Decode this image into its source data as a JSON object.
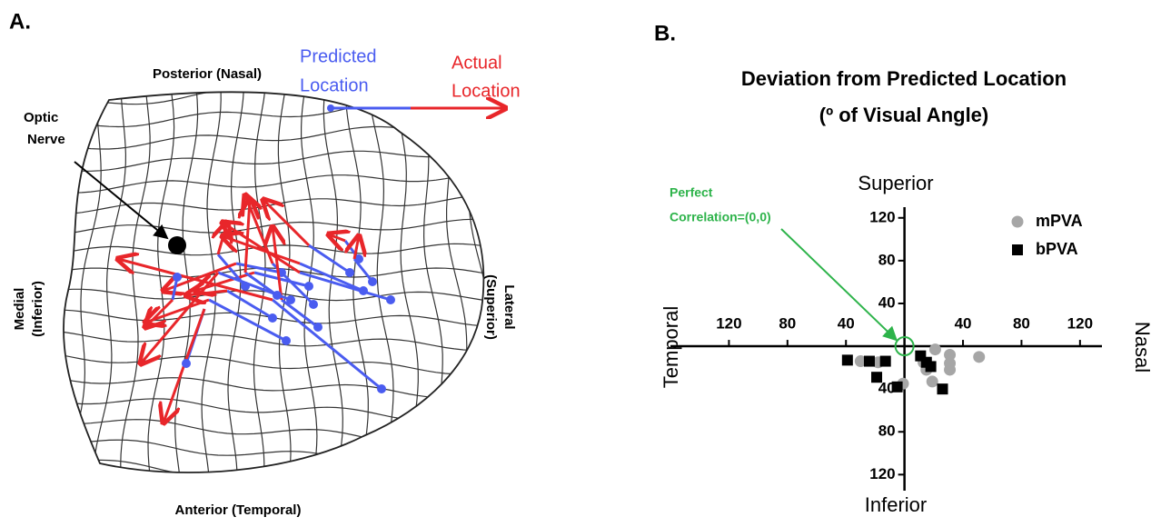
{
  "panel_a": {
    "label": "A.",
    "top": "Posterior (Nasal)",
    "bottom": "Anterior (Temporal)",
    "left": [
      "Medial",
      "(Inferior)"
    ],
    "right": [
      "Lateral",
      "(Superior)"
    ],
    "optic_nerve": [
      "Optic",
      "Nerve"
    ],
    "predicted": [
      "Predicted",
      "Location"
    ],
    "actual": [
      "Actual",
      "Location"
    ]
  },
  "chart_data": {
    "type": "scatter",
    "panel_label": "B.",
    "title": [
      "Deviation from Predicted Location",
      "(º of Visual Angle)"
    ],
    "y_top_label": "Superior",
    "y_bottom_label": "Inferior",
    "x_left_label": "Temporal",
    "x_right_label": "Nasal",
    "annotation": [
      "Perfect",
      "Correlation=(0,0)"
    ],
    "xlim": [
      -160,
      135
    ],
    "ylim": [
      -135,
      130
    ],
    "xticks": [
      {
        "value": -120,
        "label": "120"
      },
      {
        "value": -80,
        "label": "80"
      },
      {
        "value": -40,
        "label": "40"
      },
      40,
      80,
      120
    ],
    "yticks": [
      120,
      80,
      40,
      {
        "value": -40,
        "label": "40"
      },
      {
        "value": -80,
        "label": "80"
      },
      {
        "value": -120,
        "label": "120"
      }
    ],
    "series": [
      {
        "name": "mPVA",
        "color": "#a6a6a6",
        "marker": "circle",
        "x": [
          -30,
          -18,
          -1,
          21,
          13,
          15,
          31,
          31,
          31,
          19,
          51
        ],
        "values": [
          -14,
          -15,
          -35,
          -3,
          -15,
          -22,
          -8,
          -16,
          -22,
          -33,
          -10
        ]
      },
      {
        "name": "bPVA",
        "color": "#000000",
        "marker": "square",
        "x": [
          -39,
          -24,
          -13,
          -19,
          -5,
          11,
          15,
          18,
          26
        ],
        "values": [
          -13,
          -14,
          -14,
          -29,
          -38,
          -9,
          -15,
          -19,
          -40
        ]
      }
    ]
  }
}
